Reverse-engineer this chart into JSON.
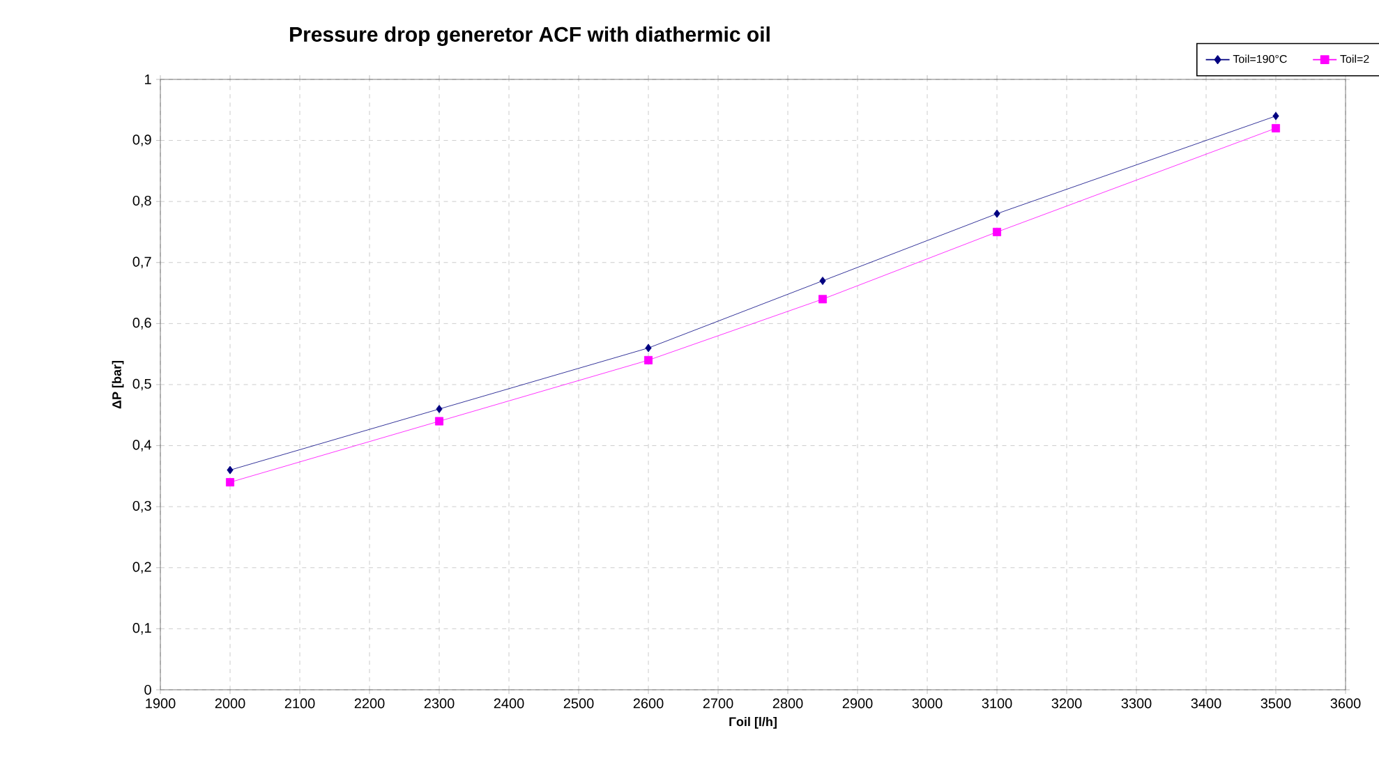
{
  "chart_data": {
    "type": "line",
    "title": "Pressure drop generetor ACF with diathermic oil",
    "xlabel": "Γoil [l/h]",
    "ylabel": "ΔP [bar]",
    "x": [
      2000,
      2300,
      2600,
      2850,
      3100,
      3500
    ],
    "series": [
      {
        "name": "Toil=190°C",
        "color": "#000080",
        "marker": "diamond",
        "values": [
          0.36,
          0.46,
          0.56,
          0.67,
          0.78,
          0.94
        ]
      },
      {
        "name": "Toil=2",
        "color": "#ff00ff",
        "marker": "square",
        "values": [
          0.34,
          0.44,
          0.54,
          0.64,
          0.75,
          0.92
        ]
      }
    ],
    "xlim": [
      1900,
      3600
    ],
    "xticks": [
      1900,
      2000,
      2100,
      2200,
      2300,
      2400,
      2500,
      2600,
      2700,
      2800,
      2900,
      3000,
      3100,
      3200,
      3300,
      3400,
      3500,
      3600
    ],
    "ylim": [
      0,
      1
    ],
    "yticks": [
      0,
      {
        "value": 0.1,
        "label": "0,1"
      },
      {
        "value": 0.2,
        "label": "0,2"
      },
      {
        "value": 0.3,
        "label": "0,3"
      },
      {
        "value": 0.4,
        "label": "0,4"
      },
      {
        "value": 0.5,
        "label": "0,5"
      },
      {
        "value": 0.6,
        "label": "0,6"
      },
      {
        "value": 0.7,
        "label": "0,7"
      },
      {
        "value": 0.8,
        "label": "0,8"
      },
      {
        "value": 0.9,
        "label": "0,9"
      },
      1
    ],
    "grid": true,
    "legend": "top right",
    "line_style": "solid"
  }
}
